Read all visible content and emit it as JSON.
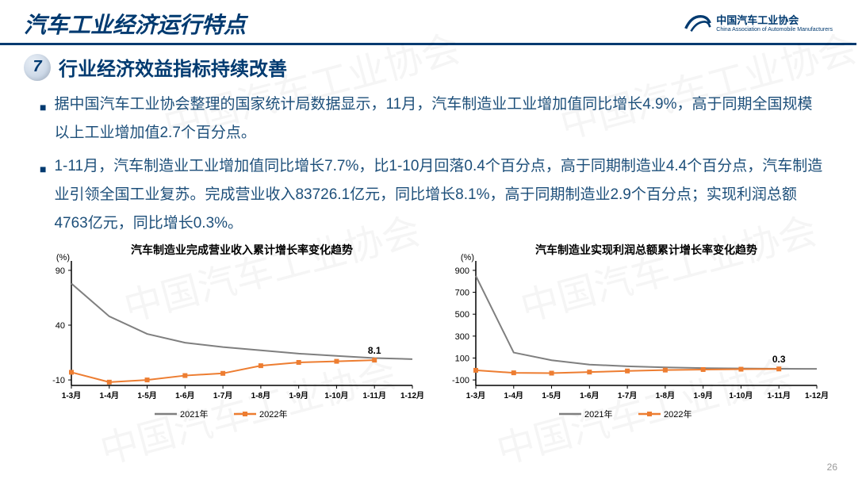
{
  "header": {
    "main_title": "汽车工业经济运行特点",
    "logo_cn": "中国汽车工业协会",
    "logo_en": "China Association of Automobile Manufacturers"
  },
  "section": {
    "number": "7",
    "subtitle": "行业经济效益指标持续改善"
  },
  "bullets": [
    "据中国汽车工业协会整理的国家统计局数据显示，11月，汽车制造业工业增加值同比增长4.9%，高于同期全国规模以上工业增加值2.7个百分点。",
    "1-11月，汽车制造业工业增加值同比增长7.7%，比1-10月回落0.4个百分点，高于同期制造业4.4个百分点，汽车制造业引领全国工业复苏。完成营业收入83726.1亿元，同比增长8.1%，高于同期制造业2.9个百分点；实现利润总额4763亿元，同比增长0.3%。"
  ],
  "chart_left": {
    "type": "line",
    "title": "汽车制造业完成营业收入累计增长率变化趋势",
    "y_unit": "(%)",
    "categories": [
      "1-3月",
      "1-4月",
      "1-5月",
      "1-6月",
      "1-7月",
      "1-8月",
      "1-9月",
      "1-10月",
      "1-11月",
      "1-12月"
    ],
    "ylim": [
      -15,
      95
    ],
    "yticks": [
      -10,
      40,
      90
    ],
    "series": [
      {
        "name": "2021年",
        "color": "#7f7f7f",
        "marker": "none",
        "width": 2,
        "values": [
          78,
          48,
          32,
          24,
          20,
          17,
          14,
          12,
          10,
          9
        ]
      },
      {
        "name": "2022年",
        "color": "#ed7d31",
        "marker": "square",
        "width": 2,
        "values": [
          -3,
          -12,
          -10,
          -6,
          -4,
          3,
          6,
          7,
          8.1,
          null
        ]
      }
    ],
    "callout": {
      "idx": 8,
      "text": "8.1",
      "color": "#000"
    },
    "axis_color": "#000000",
    "title_fontsize": 14,
    "label_fontsize": 11,
    "legend_pos": "bottom",
    "bg": "#ffffff"
  },
  "chart_right": {
    "type": "line",
    "title": "汽车制造业实现利润总额累计增长率变化趋势",
    "y_unit": "(%)",
    "categories": [
      "1-3月",
      "1-4月",
      "1-5月",
      "1-6月",
      "1-7月",
      "1-8月",
      "1-9月",
      "1-10月",
      "1-11月",
      "1-12月"
    ],
    "ylim": [
      -150,
      950
    ],
    "yticks": [
      -100,
      100,
      300,
      500,
      700,
      900
    ],
    "series": [
      {
        "name": "2021年",
        "color": "#7f7f7f",
        "marker": "none",
        "width": 2,
        "values": [
          850,
          150,
          80,
          40,
          25,
          15,
          8,
          5,
          2,
          1
        ]
      },
      {
        "name": "2022年",
        "color": "#ed7d31",
        "marker": "square",
        "width": 2,
        "values": [
          -12,
          -35,
          -38,
          -28,
          -18,
          -10,
          -5,
          -2,
          0.3,
          null
        ]
      }
    ],
    "callout": {
      "idx": 8,
      "text": "0.3",
      "color": "#000"
    },
    "axis_color": "#000000",
    "title_fontsize": 14,
    "label_fontsize": 11,
    "legend_pos": "bottom",
    "bg": "#ffffff"
  },
  "page_number": "26",
  "watermark_text": "中国汽车工业协会"
}
